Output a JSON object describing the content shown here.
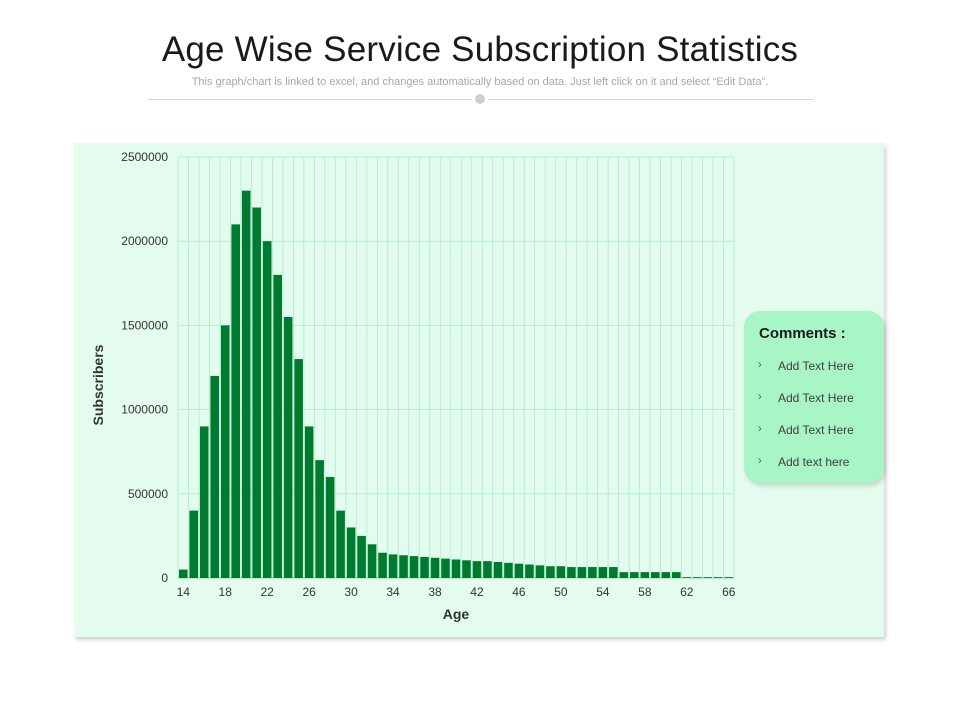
{
  "header": {
    "title": "Age Wise Service Subscription Statistics",
    "subtitle": "This graph/chart is linked to excel, and changes automatically based on data. Just left click on it and select “Edit Data”."
  },
  "comments": {
    "title": "Comments :",
    "items": [
      "Add Text Here",
      "Add Text Here",
      "Add Text Here",
      "Add text here"
    ]
  },
  "colors": {
    "bar": "#007a2e",
    "panel": "#e4fcee",
    "grid": "#a9ecd0",
    "comment_box": "#a8f5c8"
  },
  "chart_data": {
    "type": "bar",
    "title": "",
    "xlabel": "Age",
    "ylabel": "Subscribers",
    "ylim": [
      0,
      2500000
    ],
    "yticks": [
      0,
      500000,
      1000000,
      1500000,
      2000000,
      2500000
    ],
    "xticks": [
      14,
      18,
      22,
      26,
      30,
      34,
      38,
      42,
      46,
      50,
      54,
      58,
      62,
      66
    ],
    "grid": true,
    "categories": [
      14,
      15,
      16,
      17,
      18,
      19,
      20,
      21,
      22,
      23,
      24,
      25,
      26,
      27,
      28,
      29,
      30,
      31,
      32,
      33,
      34,
      35,
      36,
      37,
      38,
      39,
      40,
      41,
      42,
      43,
      44,
      45,
      46,
      47,
      48,
      49,
      50,
      51,
      52,
      53,
      54,
      55,
      56,
      57,
      58,
      59,
      60,
      61,
      62,
      63,
      64,
      65,
      66
    ],
    "values": [
      50000,
      400000,
      900000,
      1200000,
      1500000,
      2100000,
      2300000,
      2200000,
      2000000,
      1800000,
      1550000,
      1300000,
      900000,
      700000,
      600000,
      400000,
      300000,
      250000,
      200000,
      150000,
      140000,
      135000,
      130000,
      125000,
      120000,
      115000,
      110000,
      105000,
      100000,
      100000,
      95000,
      90000,
      85000,
      80000,
      75000,
      70000,
      70000,
      65000,
      65000,
      65000,
      65000,
      65000,
      35000,
      35000,
      35000,
      35000,
      35000,
      35000,
      5000,
      5000,
      5000,
      5000,
      5000
    ]
  }
}
